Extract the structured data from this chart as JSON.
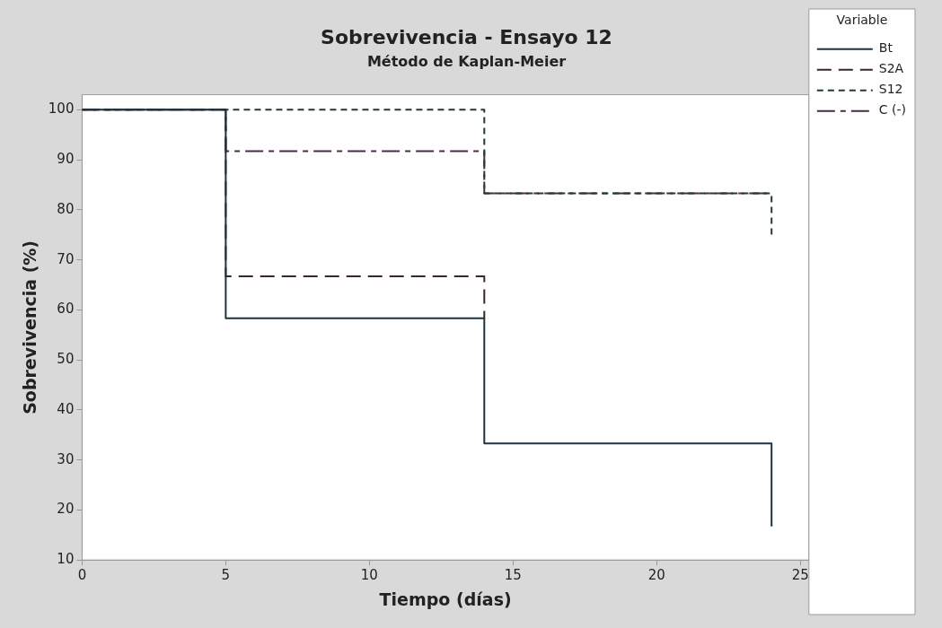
{
  "chart_data": {
    "type": "step",
    "title": "Sobrevivencia - Ensayo 12",
    "subtitle": "Método de Kaplan-Meier",
    "xlabel": "Tiempo (días)",
    "ylabel": "Sobrevivencia (%)",
    "legend_title": "Variable",
    "series": [
      {
        "name": "Bt",
        "color": "#1c3342",
        "line_style": "solid",
        "x": [
          0,
          5,
          14,
          24
        ],
        "values": [
          100,
          58.3,
          33.3,
          16.7
        ]
      },
      {
        "name": "S2A",
        "color": "#3a2626",
        "line_style": "dashed",
        "x": [
          0,
          5,
          14
        ],
        "values": [
          100,
          66.7,
          58.3
        ]
      },
      {
        "name": "S12",
        "color": "#1f3d2a",
        "line_style": "dotted",
        "x": [
          0,
          14,
          24
        ],
        "values": [
          100,
          83.3,
          75
        ]
      },
      {
        "name": "C (-)",
        "color": "#4a2a4a",
        "line_style": "dashdot",
        "x": [
          0,
          5,
          14,
          24
        ],
        "values": [
          100,
          91.7,
          83.3,
          83.3
        ]
      }
    ],
    "xlim": [
      0,
      25.3
    ],
    "xticks": [
      0,
      5,
      10,
      15,
      20,
      25
    ],
    "ylim": [
      10,
      103
    ],
    "yticks": [
      10,
      20,
      30,
      40,
      50,
      60,
      70,
      80,
      90,
      100
    ],
    "grid": false,
    "legend": "top right",
    "marker": "none"
  }
}
